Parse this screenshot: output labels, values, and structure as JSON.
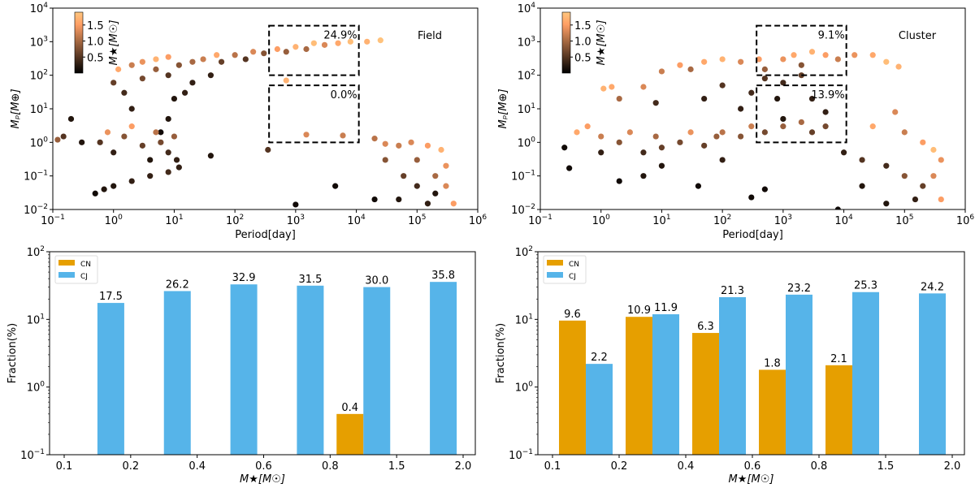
{
  "colors": {
    "cn": "#e69f00",
    "cj": "#56b4e9",
    "box": "#000000",
    "colormap": "copper"
  },
  "chart_data": [
    {
      "type": "scatter",
      "panel_label": "Field",
      "xlabel": "Period[day]",
      "ylabel": "Mₚ[M⊕]",
      "xscale": "log",
      "yscale": "log",
      "xlim": [
        0.1,
        1000000
      ],
      "ylim": [
        0.01,
        10000
      ],
      "colorbar": {
        "label": "M★[M☉]",
        "range": [
          0,
          1.9
        ],
        "ticks": [
          "0.5",
          "1.0",
          "1.5"
        ]
      },
      "boxes": [
        {
          "x": [
            365,
            11000
          ],
          "y": [
            100,
            3000
          ],
          "label": "24.9%"
        },
        {
          "x": [
            365,
            11000
          ],
          "y": [
            1,
            50
          ],
          "label": "0.0%"
        }
      ],
      "points_columns": [
        "period_day",
        "planet_mass_earth",
        "stellar_mass_sun"
      ],
      "points": [
        [
          1.2,
          150,
          1.6
        ],
        [
          2,
          200,
          1.2
        ],
        [
          3,
          250,
          1.4
        ],
        [
          5,
          300,
          1.7
        ],
        [
          8,
          350,
          1.5
        ],
        [
          1,
          60,
          0.6
        ],
        [
          1.5,
          30,
          0.4
        ],
        [
          2,
          10,
          0.3
        ],
        [
          3,
          80,
          0.7
        ],
        [
          5,
          150,
          0.9
        ],
        [
          8,
          100,
          0.5
        ],
        [
          12,
          200,
          0.8
        ],
        [
          20,
          250,
          1.0
        ],
        [
          30,
          300,
          1.2
        ],
        [
          50,
          400,
          1.6
        ],
        [
          60,
          250,
          0.6
        ],
        [
          100,
          400,
          1.1
        ],
        [
          150,
          300,
          0.5
        ],
        [
          200,
          500,
          1.3
        ],
        [
          300,
          450,
          0.8
        ],
        [
          500,
          600,
          1.5
        ],
        [
          700,
          500,
          0.9
        ],
        [
          1000,
          700,
          1.7
        ],
        [
          1500,
          600,
          1.0
        ],
        [
          2000,
          900,
          1.8
        ],
        [
          3000,
          800,
          1.3
        ],
        [
          5000,
          900,
          1.6
        ],
        [
          8000,
          1000,
          1.8
        ],
        [
          15000,
          1000,
          1.7
        ],
        [
          25000,
          1100,
          1.85
        ],
        [
          10,
          20,
          0.2
        ],
        [
          8,
          5,
          0.2
        ],
        [
          15,
          30,
          0.3
        ],
        [
          20,
          60,
          0.3
        ],
        [
          40,
          100,
          0.3
        ],
        [
          6,
          2,
          0.1
        ],
        [
          0.6,
          1,
          0.5
        ],
        [
          0.8,
          2,
          1.4
        ],
        [
          1,
          0.5,
          0.3
        ],
        [
          1.5,
          1.5,
          0.8
        ],
        [
          2,
          3,
          1.5
        ],
        [
          3,
          0.8,
          0.6
        ],
        [
          4,
          0.3,
          0.2
        ],
        [
          5,
          2,
          1.1
        ],
        [
          6,
          1,
          0.7
        ],
        [
          8,
          0.5,
          0.4
        ],
        [
          10,
          1.5,
          0.9
        ],
        [
          11,
          0.3,
          0.3
        ],
        [
          0.3,
          1,
          0.2
        ],
        [
          0.15,
          1.5,
          0.5
        ],
        [
          0.12,
          1.2,
          0.9
        ],
        [
          0.2,
          5,
          0.2
        ],
        [
          0.5,
          0.03,
          0.1
        ],
        [
          0.7,
          0.04,
          0.2
        ],
        [
          1,
          0.05,
          0.2
        ],
        [
          2,
          0.07,
          0.3
        ],
        [
          4,
          0.1,
          0.3
        ],
        [
          8,
          0.13,
          0.4
        ],
        [
          12,
          0.18,
          0.3
        ],
        [
          700,
          70,
          1.7
        ],
        [
          1500,
          1.7,
          1.3
        ],
        [
          6000,
          1.6,
          1.2
        ],
        [
          350,
          0.6,
          0.5
        ],
        [
          40,
          0.4,
          0.2
        ],
        [
          4500,
          0.05,
          0.1
        ],
        [
          1000,
          0.014,
          0.1
        ],
        [
          20000,
          1.3,
          1.1
        ],
        [
          30000,
          0.9,
          1.3
        ],
        [
          50000,
          0.8,
          1.2
        ],
        [
          80000,
          1,
          1.3
        ],
        [
          150000,
          0.8,
          1.5
        ],
        [
          250000,
          0.6,
          1.7
        ],
        [
          30000,
          0.3,
          0.8
        ],
        [
          60000,
          0.1,
          0.6
        ],
        [
          100000,
          0.05,
          0.4
        ],
        [
          200000,
          0.1,
          1.0
        ],
        [
          300000,
          0.05,
          1.3
        ],
        [
          400000,
          0.015,
          1.5
        ],
        [
          50000,
          0.02,
          0.2
        ],
        [
          150000,
          0.015,
          0.3
        ],
        [
          200000,
          0.03,
          0.2
        ],
        [
          300000,
          0.2,
          1.4
        ],
        [
          100000,
          0.3,
          0.9
        ],
        [
          20000,
          0.02,
          0.1
        ]
      ]
    },
    {
      "type": "scatter",
      "panel_label": "Cluster",
      "xlabel": "Period[day]",
      "ylabel": "Mₚ[M⊕]",
      "xscale": "log",
      "yscale": "log",
      "xlim": [
        0.1,
        1000000
      ],
      "ylim": [
        0.01,
        10000
      ],
      "colorbar": {
        "label": "M★[M☉]",
        "range": [
          0,
          1.9
        ],
        "ticks": [
          "0.5",
          "1.0",
          "1.5"
        ]
      },
      "boxes": [
        {
          "x": [
            365,
            11000
          ],
          "y": [
            100,
            3000
          ],
          "label": "9.1%"
        },
        {
          "x": [
            365,
            11000
          ],
          "y": [
            1,
            50
          ],
          "label": "13.9%"
        }
      ],
      "points_columns": [
        "period_day",
        "planet_mass_earth",
        "stellar_mass_sun"
      ],
      "points": [
        [
          1.1,
          40,
          1.7
        ],
        [
          1.5,
          45,
          1.6
        ],
        [
          2,
          20,
          1.0
        ],
        [
          5,
          45,
          1.3
        ],
        [
          10,
          130,
          1.2
        ],
        [
          20,
          200,
          1.5
        ],
        [
          30,
          150,
          1.0
        ],
        [
          50,
          250,
          1.6
        ],
        [
          100,
          300,
          1.7
        ],
        [
          200,
          250,
          1.3
        ],
        [
          400,
          300,
          1.5
        ],
        [
          500,
          150,
          0.9
        ],
        [
          1000,
          300,
          1.4
        ],
        [
          1500,
          400,
          1.6
        ],
        [
          2000,
          200,
          0.8
        ],
        [
          3000,
          500,
          1.7
        ],
        [
          5000,
          400,
          1.5
        ],
        [
          8000,
          300,
          1.2
        ],
        [
          15000,
          400,
          1.4
        ],
        [
          30000,
          400,
          1.6
        ],
        [
          50000,
          250,
          1.8
        ],
        [
          80000,
          180,
          1.7
        ],
        [
          500,
          80,
          0.5
        ],
        [
          1000,
          60,
          0.4
        ],
        [
          2000,
          100,
          0.6
        ],
        [
          8,
          15,
          0.4
        ],
        [
          50,
          20,
          0.3
        ],
        [
          100,
          50,
          0.5
        ],
        [
          200,
          10,
          0.3
        ],
        [
          300,
          30,
          0.4
        ],
        [
          800,
          20,
          0.2
        ],
        [
          3000,
          20,
          0.3
        ],
        [
          5000,
          8,
          0.3
        ],
        [
          1000,
          5,
          0.2
        ],
        [
          0.4,
          2,
          1.6
        ],
        [
          0.6,
          3,
          1.5
        ],
        [
          1,
          1.5,
          1.2
        ],
        [
          1,
          0.5,
          0.3
        ],
        [
          2,
          1,
          0.8
        ],
        [
          3,
          2,
          1.3
        ],
        [
          5,
          0.5,
          0.4
        ],
        [
          8,
          1.5,
          1.0
        ],
        [
          10,
          0.7,
          0.6
        ],
        [
          20,
          1,
          0.7
        ],
        [
          30,
          2,
          1.4
        ],
        [
          50,
          0.8,
          0.6
        ],
        [
          80,
          1.5,
          0.9
        ],
        [
          100,
          2,
          1.1
        ],
        [
          200,
          1.5,
          0.8
        ],
        [
          300,
          3,
          1.2
        ],
        [
          500,
          2,
          0.7
        ],
        [
          1000,
          3,
          0.9
        ],
        [
          2000,
          4,
          1.0
        ],
        [
          3000,
          2,
          0.6
        ],
        [
          5000,
          3,
          0.7
        ],
        [
          0.25,
          0.7,
          0.1
        ],
        [
          0.3,
          0.17,
          0.1
        ],
        [
          2,
          0.07,
          0.1
        ],
        [
          5,
          0.1,
          0.2
        ],
        [
          40,
          0.05,
          0.1
        ],
        [
          300,
          0.023,
          0.1
        ],
        [
          500,
          0.04,
          0.1
        ],
        [
          100,
          0.3,
          0.3
        ],
        [
          10,
          0.2,
          0.2
        ],
        [
          10000,
          0.5,
          0.3
        ],
        [
          20000,
          0.3,
          0.5
        ],
        [
          30000,
          3,
          1.6
        ],
        [
          50000,
          0.2,
          0.4
        ],
        [
          70000,
          8,
          1.3
        ],
        [
          100000,
          2,
          1.2
        ],
        [
          200000,
          1,
          1.5
        ],
        [
          300000,
          0.6,
          1.8
        ],
        [
          100000,
          0.1,
          0.8
        ],
        [
          200000,
          0.05,
          0.6
        ],
        [
          300000,
          0.1,
          1.3
        ],
        [
          400000,
          0.02,
          1.5
        ],
        [
          50000,
          0.015,
          0.2
        ],
        [
          150000,
          0.02,
          0.3
        ],
        [
          8000,
          0.01,
          0.1
        ],
        [
          20000,
          0.05,
          0.2
        ],
        [
          400000,
          0.3,
          1.4
        ]
      ]
    },
    {
      "type": "bar",
      "xlabel": "M★[M☉]",
      "ylabel": "Fraction(%)",
      "yscale": "log",
      "ylim": [
        0.1,
        100
      ],
      "bin_edges": [
        "0.1",
        "0.2",
        "0.4",
        "0.6",
        "0.8",
        "1.5",
        "2.0"
      ],
      "legend": {
        "placement": "top-left"
      },
      "series": [
        {
          "name": "CN",
          "values": [
            null,
            null,
            null,
            null,
            0.4,
            null
          ]
        },
        {
          "name": "CJ",
          "values": [
            17.5,
            26.2,
            32.9,
            31.5,
            30.0,
            35.8
          ]
        }
      ]
    },
    {
      "type": "bar",
      "xlabel": "M★[M☉]",
      "ylabel": "Fraction(%)",
      "yscale": "log",
      "ylim": [
        0.1,
        100
      ],
      "bin_edges": [
        "0.1",
        "0.2",
        "0.4",
        "0.6",
        "0.8",
        "1.5",
        "2.0"
      ],
      "legend": {
        "placement": "top-left"
      },
      "series": [
        {
          "name": "CN",
          "values": [
            9.6,
            10.9,
            6.3,
            1.8,
            2.1,
            null
          ]
        },
        {
          "name": "CJ",
          "values": [
            2.2,
            11.9,
            21.3,
            23.2,
            25.3,
            24.2
          ]
        }
      ]
    }
  ]
}
